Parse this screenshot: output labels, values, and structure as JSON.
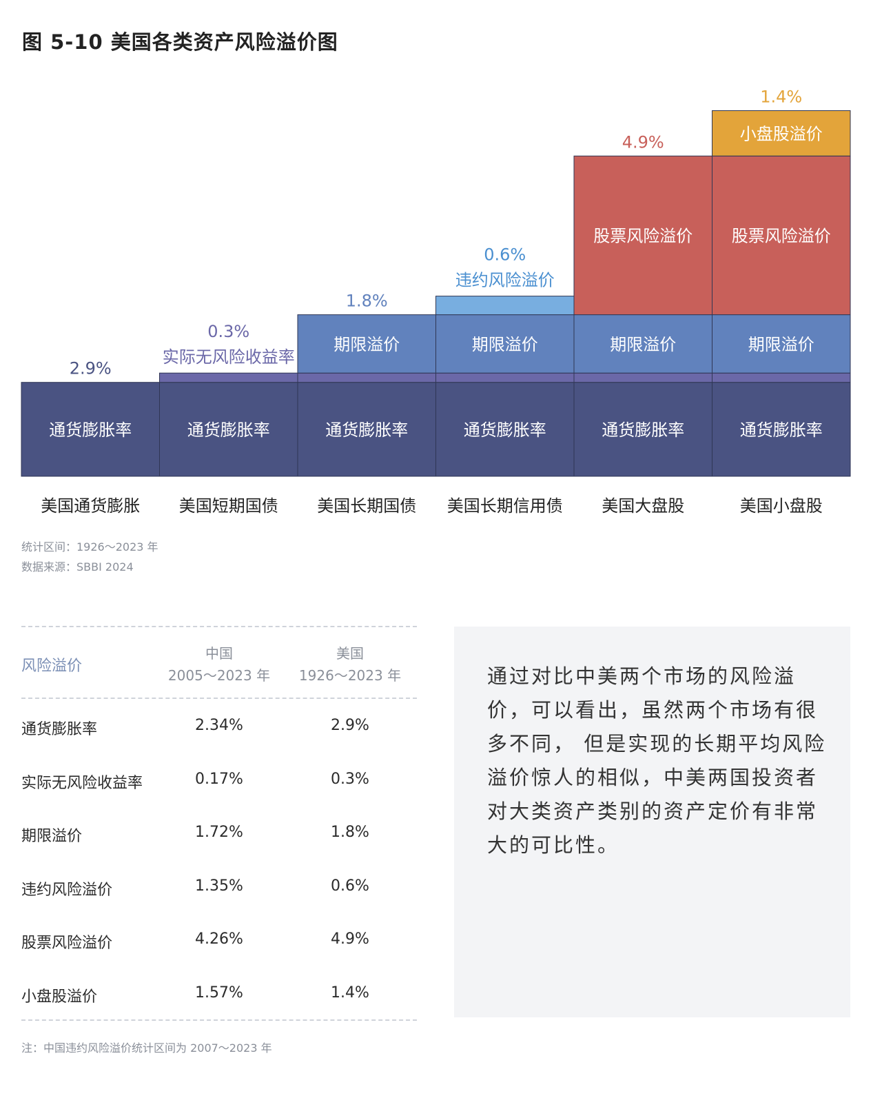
{
  "title": "图 5-10  美国各类资产风险溢价图",
  "chart_data": {
    "type": "bar",
    "subtype": "stacked-step",
    "categories": [
      "美国通货膨胀",
      "美国短期国债",
      "美国长期国债",
      "美国长期信用债",
      "美国大盘股",
      "美国小盘股"
    ],
    "series": [
      {
        "name": "通货膨胀率",
        "values": [
          2.9,
          2.9,
          2.9,
          2.9,
          2.9,
          2.9
        ],
        "color": "#4a5382",
        "textColor": "#ffffff"
      },
      {
        "name": "实际无风险收益率",
        "values": [
          0,
          0.3,
          0.3,
          0.3,
          0.3,
          0.3
        ],
        "color": "#6b68a8",
        "textColor": "#6b68a8"
      },
      {
        "name": "期限溢价",
        "values": [
          0,
          0,
          1.8,
          1.8,
          1.8,
          1.8
        ],
        "color": "#6182bd",
        "textColor": "#ffffff"
      },
      {
        "name": "违约风险溢价",
        "values": [
          0,
          0,
          0,
          0.6,
          0,
          0
        ],
        "color": "#78aee0",
        "textColor": "#4a8fd0"
      },
      {
        "name": "股票风险溢价",
        "values": [
          0,
          0,
          0,
          0,
          4.9,
          4.9
        ],
        "color": "#c8605a",
        "textColor": "#ffffff"
      },
      {
        "name": "小盘股溢价",
        "values": [
          0,
          0,
          0,
          0,
          0,
          1.4
        ],
        "color": "#e3a43a",
        "textColor": "#ffffff"
      }
    ],
    "top_labels": [
      {
        "col": 0,
        "value": "2.9%",
        "color": "#4a5382"
      },
      {
        "col": 1,
        "value": "0.3%",
        "color": "#6b68a8",
        "sub": "实际无风险收益率"
      },
      {
        "col": 2,
        "value": "1.8%",
        "color": "#6182bd"
      },
      {
        "col": 3,
        "value": "0.6%",
        "color": "#4a8fd0",
        "sub": "违约风险溢价"
      },
      {
        "col": 4,
        "value": "4.9%",
        "color": "#c8605a"
      },
      {
        "col": 5,
        "value": "1.4%",
        "color": "#e3a43a"
      }
    ],
    "segment_labels": {
      "inflation": "通货膨胀率",
      "term": "期限溢价",
      "equity": "股票风险溢价",
      "smallcap": "小盘股溢价"
    }
  },
  "notes": {
    "period": "统计区间：1926～2023 年",
    "source": "数据来源：SBBI 2024"
  },
  "table": {
    "header": {
      "col0": "风险溢价",
      "china": "中国",
      "china_period": "2005～2023 年",
      "us": "美国",
      "us_period": "1926～2023 年"
    },
    "rows": [
      {
        "name": "通货膨胀率",
        "china": "2.34%",
        "us": "2.9%"
      },
      {
        "name": "实际无风险收益率",
        "china": "0.17%",
        "us": "0.3%"
      },
      {
        "name": "期限溢价",
        "china": "1.72%",
        "us": "1.8%"
      },
      {
        "name": "违约风险溢价",
        "china": "1.35%",
        "us": "0.6%"
      },
      {
        "name": "股票风险溢价",
        "china": "4.26%",
        "us": "4.9%"
      },
      {
        "name": "小盘股溢价",
        "china": "1.57%",
        "us": "1.4%"
      }
    ]
  },
  "commentary": "通过对比中美两个市场的风险溢价，可以看出，虽然两个市场有很多不同， 但是实现的长期平均风险溢价惊人的相似，中美两国投资者对大类资产类别的资产定价有非常大的可比性。",
  "footnote": "注：中国违约风险溢价统计区间为 2007～2023 年"
}
